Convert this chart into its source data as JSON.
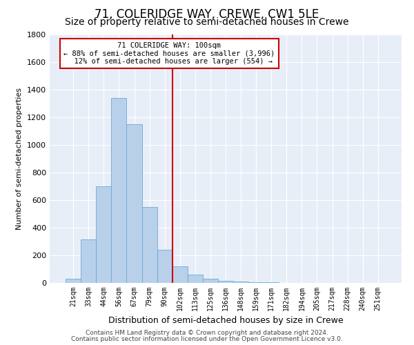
{
  "title": "71, COLERIDGE WAY, CREWE, CW1 5LE",
  "subtitle": "Size of property relative to semi-detached houses in Crewe",
  "xlabel": "Distribution of semi-detached houses by size in Crewe",
  "ylabel": "Number of semi-detached properties",
  "categories": [
    "21sqm",
    "33sqm",
    "44sqm",
    "56sqm",
    "67sqm",
    "79sqm",
    "90sqm",
    "102sqm",
    "113sqm",
    "125sqm",
    "136sqm",
    "148sqm",
    "159sqm",
    "171sqm",
    "182sqm",
    "194sqm",
    "205sqm",
    "217sqm",
    "228sqm",
    "240sqm",
    "251sqm"
  ],
  "values": [
    30,
    315,
    700,
    1340,
    1150,
    550,
    240,
    120,
    60,
    30,
    15,
    8,
    5,
    3,
    2,
    1,
    0,
    0,
    0,
    0,
    0
  ],
  "bar_color": "#b8d0ea",
  "bar_edge_color": "#6aaad4",
  "vline_pos": 7.0,
  "vline_color": "#cc0000",
  "property_label": "71 COLERIDGE WAY: 100sqm",
  "pct_smaller": 88,
  "count_smaller": 3996,
  "pct_larger": 12,
  "count_larger": 554,
  "annotation_box_color": "#cc0000",
  "ylim": [
    0,
    1800
  ],
  "yticks": [
    0,
    200,
    400,
    600,
    800,
    1000,
    1200,
    1400,
    1600,
    1800
  ],
  "background_color": "#e8eef8",
  "footer1": "Contains HM Land Registry data © Crown copyright and database right 2024.",
  "footer2": "Contains public sector information licensed under the Open Government Licence v3.0.",
  "title_fontsize": 12,
  "subtitle_fontsize": 10,
  "footer_fontsize": 6.5
}
